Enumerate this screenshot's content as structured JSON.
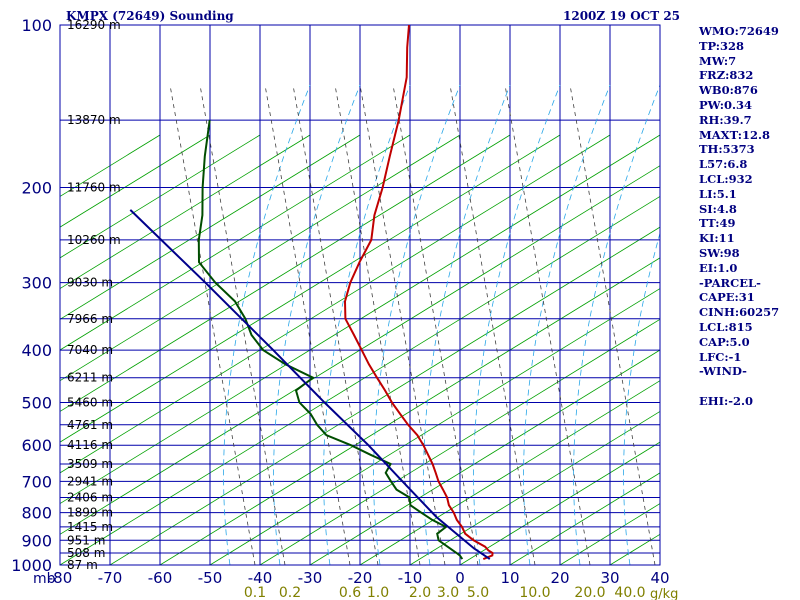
{
  "header": {
    "station_title": "KMPX (72649) Sounding",
    "valid_time": "1200Z 19 OCT 25"
  },
  "indices": [
    "WMO:72649",
    "TP:328",
    "MW:7",
    "FRZ:832",
    "WB0:876",
    "PW:0.34",
    "RH:39.7",
    "MAXT:12.8",
    "TH:5373",
    "L57:6.8",
    "LCL:932",
    "LI:5.1",
    "SI:4.8",
    "TT:49",
    "KI:11",
    "SW:98",
    "EI:1.0",
    "-PARCEL-",
    "CAPE:31",
    "CINH:60257",
    "LCL:815",
    "CAP:5.0",
    "LFC:-1",
    "-WIND-",
    "",
    "EHI:-2.0"
  ],
  "chart_data": {
    "type": "line",
    "subtype": "skew-t log-p",
    "pressure_unit": "mb",
    "pressure_ticks": [
      100,
      200,
      300,
      400,
      500,
      600,
      700,
      800,
      900,
      1000
    ],
    "temperature_ticks": [
      -80,
      -70,
      -60,
      -50,
      -40,
      -30,
      -20,
      -10,
      0,
      10,
      20,
      30,
      40
    ],
    "mixing_ratio_unit": "g/kg",
    "mixing_ratio_labels": [
      "0.1",
      "0.2",
      "0.6",
      "1.0",
      "2.0",
      "3.0",
      "5.0",
      "10.0",
      "20.0",
      "40.0"
    ],
    "height_labels": [
      {
        "p": 100,
        "label": "16290 m"
      },
      {
        "p": 150,
        "label": "13870 m"
      },
      {
        "p": 200,
        "label": "11760 m"
      },
      {
        "p": 250,
        "label": "10260 m"
      },
      {
        "p": 300,
        "label": "9030 m"
      },
      {
        "p": 350,
        "label": "7966 m"
      },
      {
        "p": 400,
        "label": "7040 m"
      },
      {
        "p": 450,
        "label": "6211 m"
      },
      {
        "p": 500,
        "label": "5460 m"
      },
      {
        "p": 550,
        "label": "4761 m"
      },
      {
        "p": 600,
        "label": "4116 m"
      },
      {
        "p": 650,
        "label": "3509 m"
      },
      {
        "p": 700,
        "label": "2941 m"
      },
      {
        "p": 750,
        "label": "2406 m"
      },
      {
        "p": 800,
        "label": "1899 m"
      },
      {
        "p": 850,
        "label": "1415 m"
      },
      {
        "p": 900,
        "label": "951 m"
      },
      {
        "p": 950,
        "label": "508 m"
      },
      {
        "p": 1000,
        "label": "87 m"
      }
    ],
    "series": [
      {
        "color": "#c00000",
        "points": [
          [
            975,
            4.0
          ],
          [
            960,
            5.4
          ],
          [
            950,
            5.2
          ],
          [
            940,
            4.1
          ],
          [
            925,
            3.0
          ],
          [
            900,
            0.0
          ],
          [
            875,
            -2.4
          ],
          [
            850,
            -3.8
          ],
          [
            825,
            -5.6
          ],
          [
            800,
            -7.0
          ],
          [
            775,
            -8.8
          ],
          [
            750,
            -10.0
          ],
          [
            725,
            -11.7
          ],
          [
            700,
            -13.5
          ],
          [
            675,
            -15.0
          ],
          [
            650,
            -16.6
          ],
          [
            625,
            -18.5
          ],
          [
            600,
            -20.5
          ],
          [
            575,
            -22.8
          ],
          [
            550,
            -25.8
          ],
          [
            525,
            -28.6
          ],
          [
            500,
            -31.5
          ],
          [
            475,
            -34.2
          ],
          [
            450,
            -37.2
          ],
          [
            425,
            -40.3
          ],
          [
            400,
            -43.3
          ],
          [
            375,
            -46.5
          ],
          [
            350,
            -50.0
          ],
          [
            325,
            -52.0
          ],
          [
            300,
            -53.0
          ],
          [
            275,
            -53.4
          ],
          [
            250,
            -53.5
          ],
          [
            225,
            -55.6
          ],
          [
            200,
            -57.0
          ],
          [
            175,
            -59.0
          ],
          [
            150,
            -61.2
          ],
          [
            125,
            -64.3
          ],
          [
            110,
            -67.5
          ],
          [
            100,
            -69.6
          ]
        ]
      },
      {
        "color": "#004d00",
        "points": [
          [
            975,
            -0.2
          ],
          [
            960,
            -1.1
          ],
          [
            950,
            -2.0
          ],
          [
            925,
            -4.5
          ],
          [
            900,
            -7.0
          ],
          [
            875,
            -8.0
          ],
          [
            850,
            -7.0
          ],
          [
            825,
            -10.5
          ],
          [
            800,
            -13.5
          ],
          [
            775,
            -16.5
          ],
          [
            750,
            -17.5
          ],
          [
            725,
            -21.0
          ],
          [
            700,
            -23.0
          ],
          [
            675,
            -25.0
          ],
          [
            650,
            -25.0
          ],
          [
            625,
            -30.0
          ],
          [
            600,
            -35.0
          ],
          [
            575,
            -41.0
          ],
          [
            550,
            -44.0
          ],
          [
            525,
            -46.5
          ],
          [
            500,
            -50.0
          ],
          [
            475,
            -52.0
          ],
          [
            450,
            -50.0
          ],
          [
            425,
            -57.0
          ],
          [
            400,
            -63.0
          ],
          [
            375,
            -67.0
          ],
          [
            350,
            -70.0
          ],
          [
            325,
            -74.0
          ],
          [
            300,
            -80.0
          ],
          [
            275,
            -85.5
          ],
          [
            250,
            -88.0
          ],
          [
            225,
            -90.0
          ],
          [
            200,
            -93.0
          ],
          [
            175,
            -96.0
          ],
          [
            150,
            -99.0
          ]
        ]
      },
      {
        "color": "#00008b",
        "points": [
          [
            975,
            5.3
          ],
          [
            932,
            1.0
          ],
          [
            815,
            -10.0
          ],
          [
            700,
            -20.7
          ],
          [
            600,
            -31.5
          ],
          [
            500,
            -45.0
          ],
          [
            400,
            -61.0
          ],
          [
            300,
            -82.0
          ],
          [
            220,
            -105.0
          ]
        ]
      }
    ]
  }
}
